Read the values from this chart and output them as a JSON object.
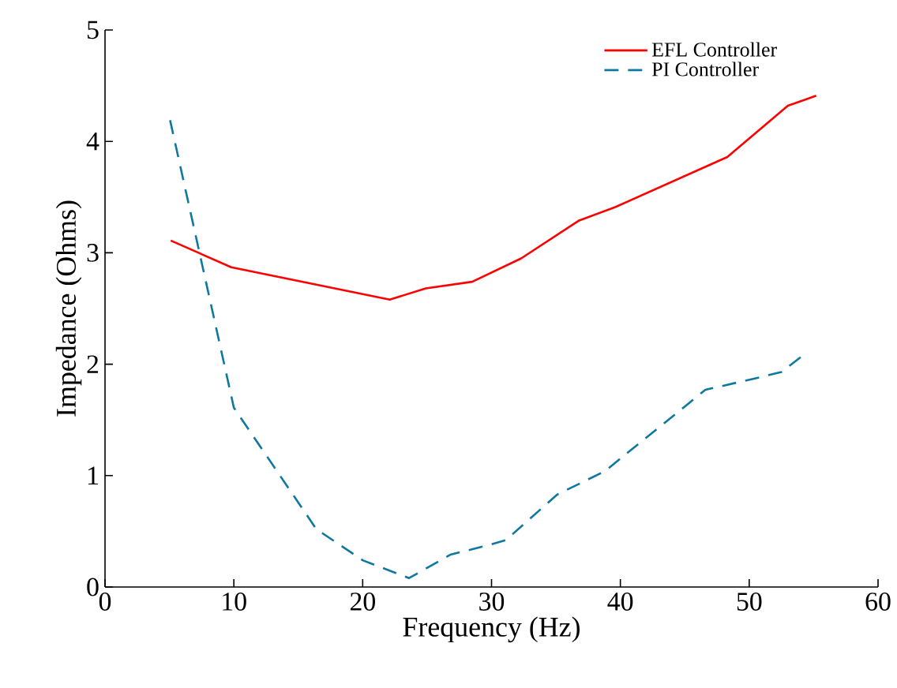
{
  "chart_data": {
    "type": "line",
    "xlabel": "Frequency (Hz)",
    "ylabel": "Impedance (Ohms)",
    "xlim": [
      0,
      60
    ],
    "xticks": [
      0,
      10,
      20,
      30,
      40,
      50,
      60
    ],
    "ylim": [
      0,
      5
    ],
    "yticks": [
      0,
      1,
      2,
      3,
      4,
      5
    ],
    "grid": false,
    "legend": "top right",
    "marker": "none",
    "series": [
      {
        "name": "EFL Controller",
        "color": "#ff0000",
        "line_style": "solid",
        "x": [
          5.1,
          9.8,
          22.1,
          24.9,
          28.5,
          32.3,
          36.8,
          39.6,
          48.3,
          53,
          55.2
        ],
        "values": [
          3.11,
          2.87,
          2.58,
          2.68,
          2.74,
          2.95,
          3.29,
          3.41,
          3.86,
          4.32,
          4.41
        ]
      },
      {
        "name": "PI Controller",
        "color": "#0e78a0",
        "line_style": "dashed",
        "x": [
          5.05,
          10,
          16.4,
          20,
          23.6,
          26.8,
          29.9,
          31.1,
          35.1,
          38.8,
          46.6,
          51.1,
          52.5,
          54.3
        ],
        "values": [
          4.19,
          1.61,
          0.52,
          0.24,
          0.08,
          0.29,
          0.38,
          0.42,
          0.83,
          1.04,
          1.77,
          1.89,
          1.93,
          2.09
        ]
      }
    ]
  }
}
